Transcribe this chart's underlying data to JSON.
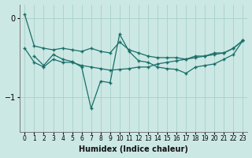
{
  "xlabel": "Humidex (Indice chaleur)",
  "background_color": "#cce8e4",
  "grid_color": "#aad4cc",
  "line_color": "#1a6e68",
  "xlim": [
    -0.5,
    23.5
  ],
  "ylim": [
    -1.45,
    0.18
  ],
  "yticks": [
    0,
    -1
  ],
  "xticks": [
    0,
    1,
    2,
    3,
    4,
    5,
    6,
    7,
    8,
    9,
    10,
    11,
    12,
    13,
    14,
    15,
    16,
    17,
    18,
    19,
    20,
    21,
    22,
    23
  ],
  "line1_x": [
    0,
    1,
    2,
    3,
    4,
    5,
    6,
    7,
    8,
    9,
    10,
    11,
    12,
    13,
    14,
    15,
    16,
    17,
    18,
    19,
    20,
    21,
    22,
    23
  ],
  "line1_y": [
    0.05,
    -0.35,
    -0.38,
    -0.4,
    -0.38,
    -0.4,
    -0.42,
    -0.38,
    -0.42,
    -0.44,
    -0.3,
    -0.4,
    -0.44,
    -0.48,
    -0.5,
    -0.5,
    -0.5,
    -0.52,
    -0.48,
    -0.48,
    -0.44,
    -0.44,
    -0.38,
    -0.28
  ],
  "line2_x": [
    1,
    2,
    3,
    4,
    5,
    6,
    7,
    8,
    9,
    10,
    11,
    12,
    13,
    14,
    15,
    16,
    17,
    18,
    19,
    20,
    21,
    22,
    23
  ],
  "line2_y": [
    -0.48,
    -0.6,
    -0.46,
    -0.52,
    -0.55,
    -0.62,
    -1.15,
    -0.8,
    -0.82,
    -0.2,
    -0.42,
    -0.54,
    -0.56,
    -0.62,
    -0.64,
    -0.65,
    -0.7,
    -0.62,
    -0.6,
    -0.58,
    -0.52,
    -0.46,
    -0.28
  ],
  "line3_x": [
    0,
    1,
    2,
    3,
    4,
    5,
    6,
    7,
    8,
    9,
    10,
    11,
    12,
    13,
    14,
    15,
    16,
    17,
    18,
    19,
    20,
    21,
    22,
    23
  ],
  "line3_y": [
    -0.38,
    -0.56,
    -0.62,
    -0.52,
    -0.56,
    -0.56,
    -0.6,
    -0.62,
    -0.64,
    -0.66,
    -0.65,
    -0.64,
    -0.62,
    -0.62,
    -0.58,
    -0.56,
    -0.54,
    -0.52,
    -0.5,
    -0.48,
    -0.46,
    -0.44,
    -0.38,
    -0.28
  ]
}
